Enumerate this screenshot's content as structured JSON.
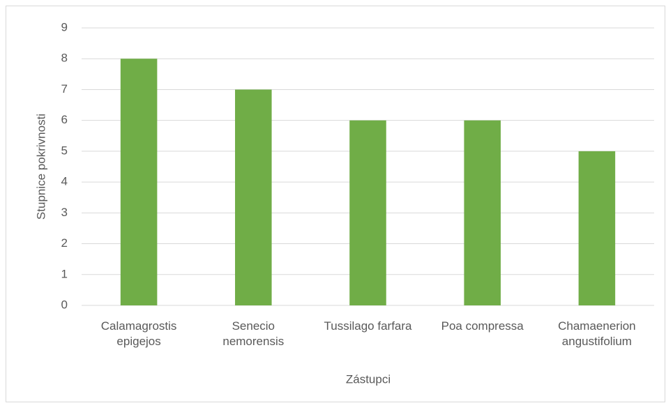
{
  "chart_data": {
    "type": "bar",
    "categories": [
      "Calamagrostis\nepigejos",
      "Senecio\nnemorensis",
      "Tussilago farfara",
      "Poa compressa",
      "Chamaenerion\nangustifolium"
    ],
    "values": [
      8,
      7,
      6,
      6,
      5
    ],
    "color": "#70ad47",
    "ylim": [
      0,
      9
    ],
    "yticks": [
      0,
      1,
      2,
      3,
      4,
      5,
      6,
      7,
      8,
      9
    ],
    "grid": true,
    "xlabel": "Zástupci",
    "ylabel": "Stupnice pokrivnosti"
  }
}
